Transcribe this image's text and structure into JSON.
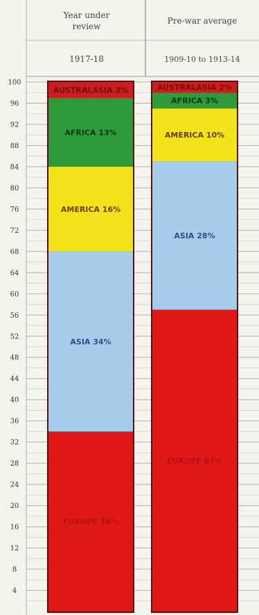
{
  "header": {
    "col1_title_line1": "Year under",
    "col1_title_line2": "review",
    "col2_title": "Pre-war average",
    "col1_period": "1917-18",
    "col2_period": "1909-10 to 1913-14"
  },
  "chart_data": {
    "type": "bar",
    "stacked": true,
    "orientation": "vertical",
    "ylim": [
      0,
      100
    ],
    "yticks": [
      100,
      96,
      92,
      88,
      84,
      80,
      76,
      72,
      68,
      64,
      60,
      56,
      52,
      48,
      44,
      40,
      36,
      32,
      28,
      24,
      20,
      16,
      12,
      8,
      4
    ],
    "categories": [
      "1917-18",
      "1909-10 to 1913-14"
    ],
    "grid": true,
    "legend": "none",
    "series": [
      {
        "name": "EUROPE",
        "values": [
          34,
          57
        ],
        "color": "#e01818",
        "labels": [
          "EUROPE 34%",
          "EUROPE 57%"
        ],
        "label_color": "#b81010"
      },
      {
        "name": "ASIA",
        "values": [
          34,
          28
        ],
        "color": "#a6ccec",
        "labels": [
          "ASIA 34%",
          "ASIA 28%"
        ],
        "label_color": "#2b4f86"
      },
      {
        "name": "AMERICA",
        "values": [
          16,
          10
        ],
        "color": "#f2e41a",
        "labels": [
          "AMERICA 16%",
          "AMERICA 10%"
        ],
        "label_color": "#6a3d12"
      },
      {
        "name": "AFRICA",
        "values": [
          13,
          3
        ],
        "color": "#2f9a3c",
        "labels": [
          "AFRICA 13%",
          "AFRICA 3%"
        ],
        "label_color": "#0d3a12"
      },
      {
        "name": "AUSTRALASIA",
        "values": [
          3,
          2
        ],
        "color": "#c82020",
        "labels": [
          "AUSTRALASIA 3%",
          "AUSTRALASIA 2%"
        ],
        "label_color": "#7a0c0c"
      }
    ]
  }
}
